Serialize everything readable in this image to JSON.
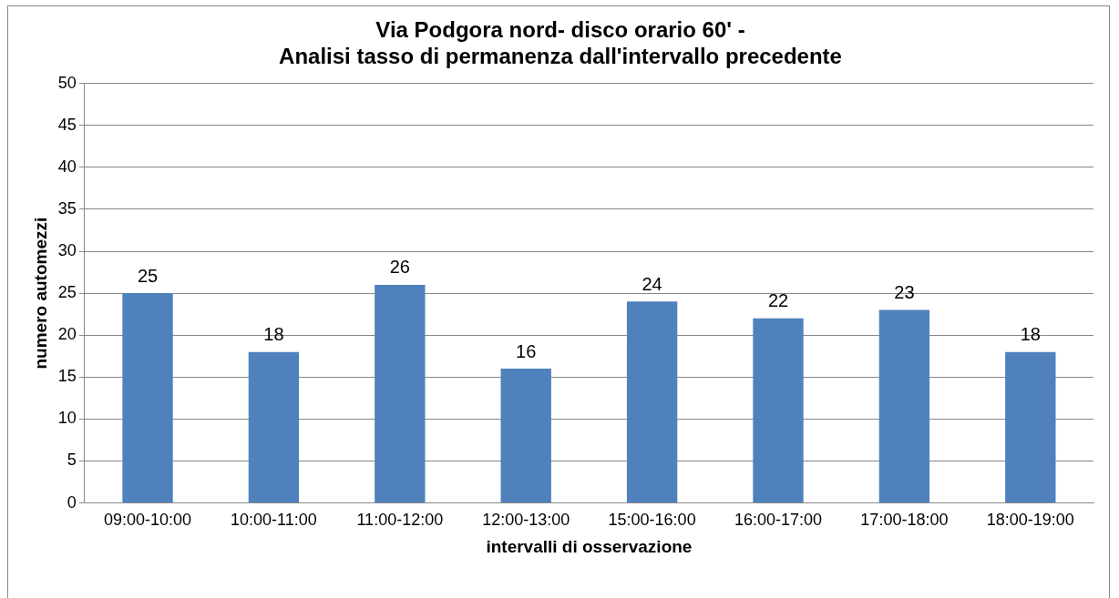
{
  "chart_data": {
    "type": "bar",
    "title": "Via Podgora nord- disco orario 60' -\nAnalisi tasso di permanenza dall'intervallo precedente",
    "xlabel": "intervalli di osservazione",
    "ylabel": "numero automezzi",
    "categories": [
      "09:00-10:00",
      "10:00-11:00",
      "11:00-12:00",
      "12:00-13:00",
      "15:00-16:00",
      "16:00-17:00",
      "17:00-18:00",
      "18:00-19:00"
    ],
    "values": [
      25,
      18,
      26,
      16,
      24,
      22,
      23,
      18
    ],
    "color": "#4f81bd",
    "ylim": [
      0,
      50
    ],
    "yticks": [
      0,
      5,
      10,
      15,
      20,
      25,
      30,
      35,
      40,
      45,
      50
    ],
    "grid": "y",
    "data_labels": true,
    "legend": false
  }
}
